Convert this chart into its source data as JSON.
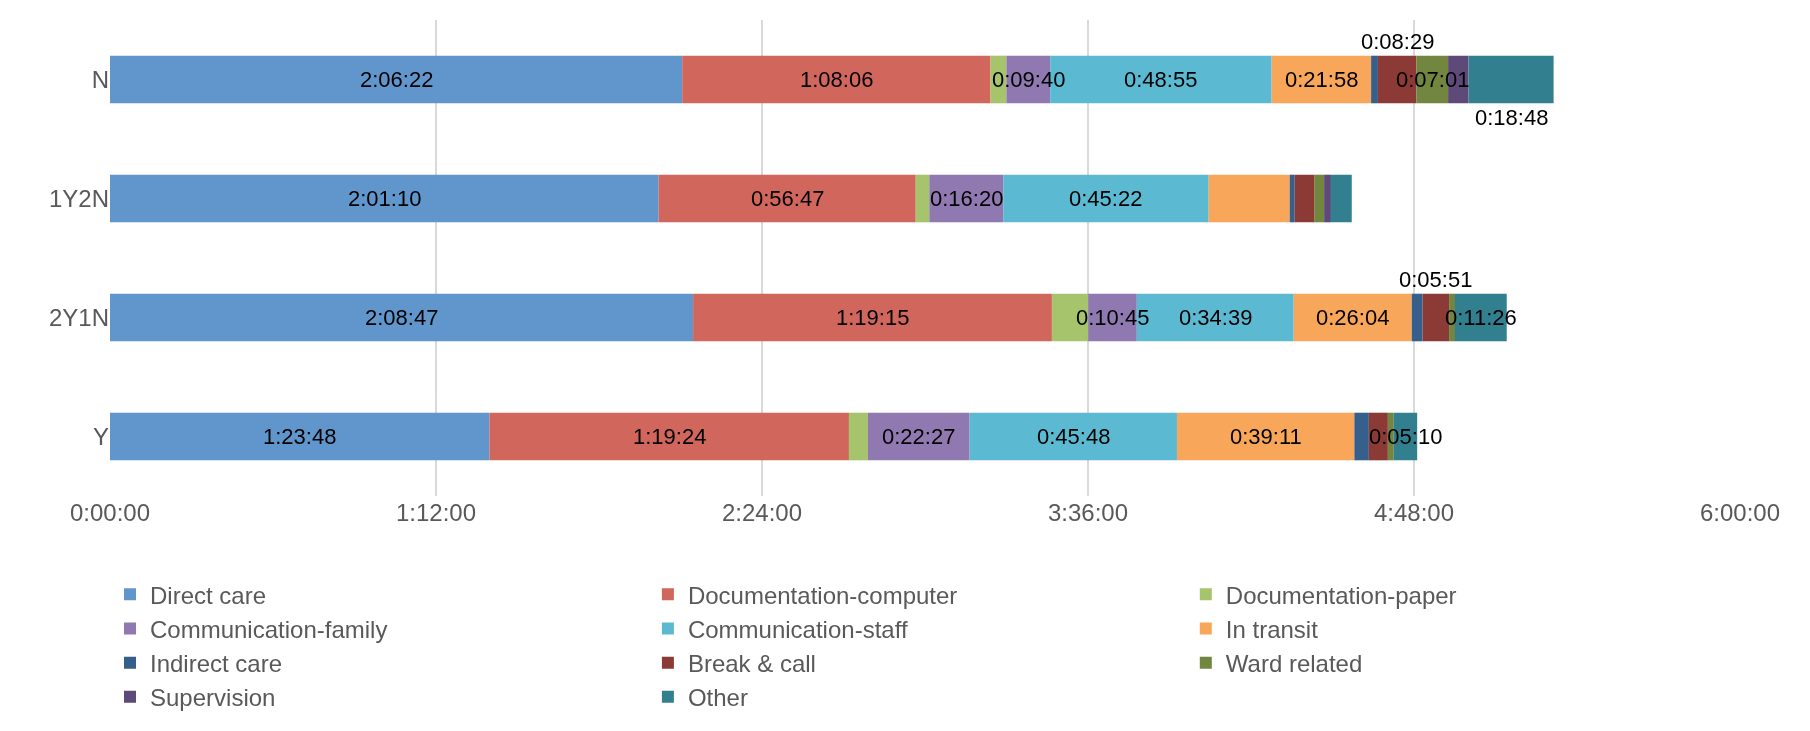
{
  "chart_data": {
    "type": "bar",
    "orientation": "horizontal",
    "stacked": true,
    "categories": [
      "N",
      "1Y2N",
      "2Y1N",
      "Y"
    ],
    "xlim": [
      0,
      360
    ],
    "xticks": [
      {
        "value": 0,
        "label": "0:00:00"
      },
      {
        "value": 72,
        "label": "1:12:00"
      },
      {
        "value": 144,
        "label": "2:24:00"
      },
      {
        "value": 216,
        "label": "3:36:00"
      },
      {
        "value": 288,
        "label": "4:48:00"
      },
      {
        "value": 360,
        "label": "6:00:00"
      }
    ],
    "grid": "x",
    "legend": "bottom",
    "series": [
      {
        "name": "Direct care",
        "color": "#6196cc",
        "values": [
          126.37,
          121.17,
          128.78,
          83.8
        ],
        "value_labels": [
          "2:06:22",
          "2:01:10",
          "2:08:47",
          "1:23:48"
        ]
      },
      {
        "name": "Documentation-computer",
        "color": "#d0665c",
        "values": [
          68.1,
          56.78,
          79.25,
          79.4
        ],
        "value_labels": [
          "1:08:06",
          "0:56:47",
          "1:19:15",
          "1:19:24"
        ]
      },
      {
        "name": "Documentation-paper",
        "color": "#a6c46c",
        "values": [
          3.5,
          3,
          8,
          4.2
        ]
      },
      {
        "name": "Communication-family",
        "color": "#9079b0",
        "values": [
          9.67,
          16.33,
          10.75,
          22.45
        ],
        "value_labels": [
          "0:09:40",
          "0:16:20",
          "0:10:45",
          "0:22:27"
        ]
      },
      {
        "name": "Communication-staff",
        "color": "#5bbad2",
        "values": [
          48.92,
          45.37,
          34.65,
          45.8
        ],
        "value_labels": [
          "0:48:55",
          "0:45:22",
          "0:34:39",
          "0:45:48"
        ]
      },
      {
        "name": "In transit",
        "color": "#f8a75a",
        "values": [
          21.97,
          17.9,
          26.07,
          39.18
        ],
        "value_labels": [
          "0:21:58",
          null,
          "0:26:04",
          "0:39:11"
        ]
      },
      {
        "name": "Indirect care",
        "color": "#365f8b",
        "values": [
          1.5,
          1.1,
          2.4,
          3.2
        ]
      },
      {
        "name": "Break & call",
        "color": "#8b3a36",
        "values": [
          8.48,
          4.3,
          5.85,
          4.2
        ],
        "value_labels": [
          "0:08:29",
          null,
          "0:05:51",
          null
        ]
      },
      {
        "name": "Ward related",
        "color": "#728640",
        "values": [
          7.02,
          2.2,
          1.3,
          1.3
        ],
        "value_labels": [
          "0:07:01",
          null,
          null,
          null
        ]
      },
      {
        "name": "Supervision",
        "color": "#5e4a78",
        "values": [
          4.5,
          1.5,
          0,
          0
        ]
      },
      {
        "name": "Other",
        "color": "#317f8f",
        "values": [
          18.8,
          4.6,
          11.43,
          5.17
        ],
        "value_labels": [
          "0:18:48",
          null,
          "0:11:26",
          "0:05:10"
        ]
      }
    ]
  }
}
